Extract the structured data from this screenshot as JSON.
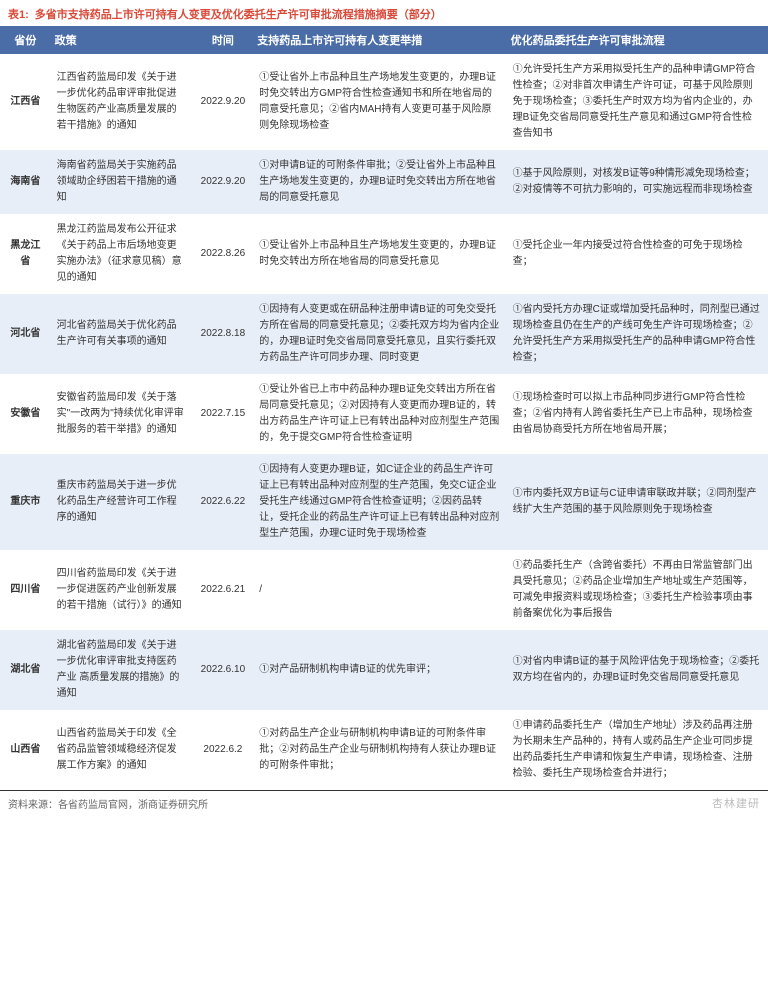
{
  "title": {
    "label": "表1:",
    "text": "多省市支持药品上市许可持有人变更及优化委托生产许可审批流程措施摘要（部分）"
  },
  "columns": {
    "province": "省份",
    "policy": "政策",
    "date": "时间",
    "measure": "支持药品上市许可持有人变更举措",
    "process": "优化药品委托生产许可审批流程"
  },
  "rows": [
    {
      "province": "江西省",
      "policy": "江西省药监局印发《关于进一步优化药品审评审批促进生物医药产业高质量发展的若干措施》的通知",
      "date": "2022.9.20",
      "measure": "①受让省外上市品种且生产场地发生变更的，办理B证时免交转出方GMP符合性检查通知书和所在地省局的同意受托意见；②省内MAH持有人变更可基于风险原则免除现场检查",
      "process": "①允许受托生产方采用拟受托生产的品种申请GMP符合性检查；②对非首次申请生产许可证，可基于风险原则免于现场检查；③委托生产时双方均为省内企业的，办理B证免交省局同意受托生产意见和通过GMP符合性检查告知书"
    },
    {
      "province": "海南省",
      "policy": "海南省药监局关于实施药品领域助企纾困若干措施的通知",
      "date": "2022.9.20",
      "measure": "①对申请B证的可附条件审批；②受让省外上市品种且生产场地发生变更的，办理B证时免交转出方所在地省局的同意受托意见",
      "process": "①基于风险原则，对核发B证等9种情形减免现场检查；②对疫情等不可抗力影响的，可实施远程而非现场检查"
    },
    {
      "province": "黑龙江省",
      "policy": "黑龙江药监局发布公开征求《关于药品上市后场地变更实施办法》（征求意见稿）意见的通知",
      "date": "2022.8.26",
      "measure": "①受让省外上市品种且生产场地发生变更的，办理B证时免交转出方所在地省局的同意受托意见",
      "process": "①受托企业一年内接受过符合性检查的可免于现场检查；"
    },
    {
      "province": "河北省",
      "policy": "河北省药监局关于优化药品生产许可有关事项的通知",
      "date": "2022.8.18",
      "measure": "①因持有人变更或在研品种注册申请B证的可免交受托方所在省局的同意受托意见；②委托双方均为省内企业的，办理B证时免交省局同意受托意见，且实行委托双方药品生产许可同步办理、同时变更",
      "process": "①省内受托方办理C证或增加受托品种时，同剂型已通过现场检查且仍在生产的产线可免生产许可现场检查；②允许受托生产方采用拟受托生产的品种申请GMP符合性检查；"
    },
    {
      "province": "安徽省",
      "policy": "安徽省药监局印发《关于落实\"一改两为\"持续优化审评审批服务的若干举措》的通知",
      "date": "2022.7.15",
      "measure": "①受让外省已上市中药品种办理B证免交转出方所在省局同意受托意见；②对因持有人变更而办理B证的，转出方药品生产许可证上已有转出品种对应剂型生产范围的，免于提交GMP符合性检查证明",
      "process": "①现场检查时可以拟上市品种同步进行GMP符合性检查；②省内持有人跨省委托生产已上市品种，现场检查由省局协商受托方所在地省局开展；"
    },
    {
      "province": "重庆市",
      "policy": "重庆市药监局关于进一步优化药品生产经营许可工作程序的通知",
      "date": "2022.6.22",
      "measure": "①因持有人变更办理B证，如C证企业的药品生产许可证上已有转出品种对应剂型的生产范围，免交C证企业受托生产线通过GMP符合性检查证明；②因药品转让，受托企业的药品生产许可证上已有转出品种对应剂型生产范围，办理C证时免于现场检查",
      "process": "①市内委托双方B证与C证申请审联政并联；②同剂型产线扩大生产范围的基于风险原则免于现场检查"
    },
    {
      "province": "四川省",
      "policy": "四川省药监局印发《关于进一步促进医药产业创新发展的若干措施（试行）》的通知",
      "date": "2022.6.21",
      "measure": "/",
      "process": "①药品委托生产（含跨省委托）不再由日常监管部门出具受托意见；②药品企业增加生产地址或生产范围等，可减免申报资料或现场检查；③委托生产检验事项由事前备案优化为事后报告"
    },
    {
      "province": "湖北省",
      "policy": "湖北省药监局印发《关于进一步优化审评审批支持医药产业 高质量发展的措施》的通知",
      "date": "2022.6.10",
      "measure": "①对产品研制机构申请B证的优先审评；",
      "process": "①对省内申请B证的基于风险评估免于现场检查；②委托双方均在省内的，办理B证时免交省局同意受托意见"
    },
    {
      "province": "山西省",
      "policy": "山西省药监局关于印发《全省药品监管领域稳经济促发展工作方案》的通知",
      "date": "2022.6.2",
      "measure": "①对药品生产企业与研制机构申请B证的可附条件审批；②对药品生产企业与研制机构持有人获让办理B证的可附条件审批；",
      "process": "①申请药品委托生产（增加生产地址）涉及药品再注册为长期未生产品种的，持有人或药品生产企业可同步提出药品委托生产申请和恢复生产申请，现场检查、注册检验、委托生产现场检查合并进行；"
    }
  ],
  "footer": {
    "source": "资料来源：各省药监局官网，浙商证券研究所",
    "watermark": "杏林建研"
  },
  "style": {
    "header_bg": "#4a6da7",
    "header_fg": "#ffffff",
    "row_odd_bg": "#ffffff",
    "row_even_bg": "#e8eef7",
    "title_color": "#d94a3a"
  }
}
